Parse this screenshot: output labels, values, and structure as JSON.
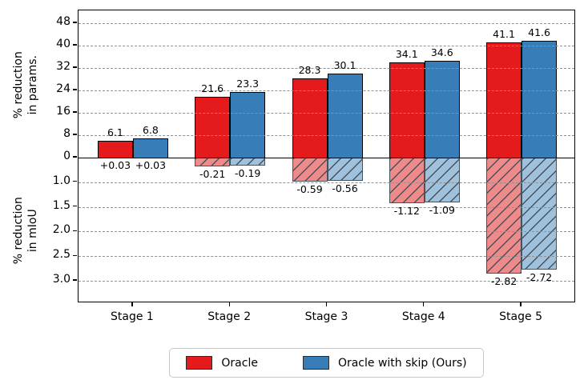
{
  "chart_data": {
    "type": "bar",
    "title": "",
    "categories": [
      "Stage 1",
      "Stage 2",
      "Stage 3",
      "Stage 4",
      "Stage 5"
    ],
    "series": [
      {
        "name": "Oracle",
        "color": "#e41a1c",
        "hatch_fill": "#ef8a8b",
        "params_reduction": [
          6.1,
          21.6,
          28.3,
          34.1,
          41.1
        ],
        "params_labels": [
          "6.1",
          "21.6",
          "28.3",
          "34.1",
          "41.1"
        ],
        "miou_reduction": [
          0.03,
          -0.21,
          -0.59,
          -1.12,
          -2.82
        ],
        "miou_labels": [
          "+0.03",
          "-0.21",
          "-0.59",
          "-1.12",
          "-2.82"
        ]
      },
      {
        "name": "Oracle with skip (Ours)",
        "color": "#377eb8",
        "hatch_fill": "#9fc1dc",
        "params_reduction": [
          6.8,
          23.3,
          30.1,
          34.6,
          41.6
        ],
        "params_labels": [
          "6.8",
          "23.3",
          "30.1",
          "34.6",
          "41.6"
        ],
        "miou_reduction": [
          0.03,
          -0.19,
          -0.56,
          -1.09,
          -2.72
        ],
        "miou_labels": [
          "+0.03",
          "-0.19",
          "-0.56",
          "-1.09",
          "-2.72"
        ]
      }
    ],
    "top_axis": {
      "label_line1": "% reduction",
      "label_line2": "in params.",
      "tick_labels": [
        "0",
        "8",
        "16",
        "24",
        "32",
        "40",
        "48"
      ],
      "tick_values": [
        0,
        8,
        16,
        24,
        32,
        40,
        48
      ],
      "range": [
        0,
        52.5
      ]
    },
    "bottom_axis": {
      "label_line1": "% reduction",
      "label_line2": "in mIoU",
      "tick_labels": [
        "1.0",
        "1.5",
        "2.0",
        "2.5",
        "3.0"
      ],
      "range": [
        0,
        3.55
      ]
    },
    "grid": "dashed-horizontal",
    "legend_position": "bottom-center",
    "hatch_line_color": "#47525c"
  },
  "legend": {
    "items": [
      {
        "label": "Oracle",
        "color": "#e41a1c"
      },
      {
        "label": "Oracle with skip (Ours)",
        "color": "#377eb8"
      }
    ]
  }
}
